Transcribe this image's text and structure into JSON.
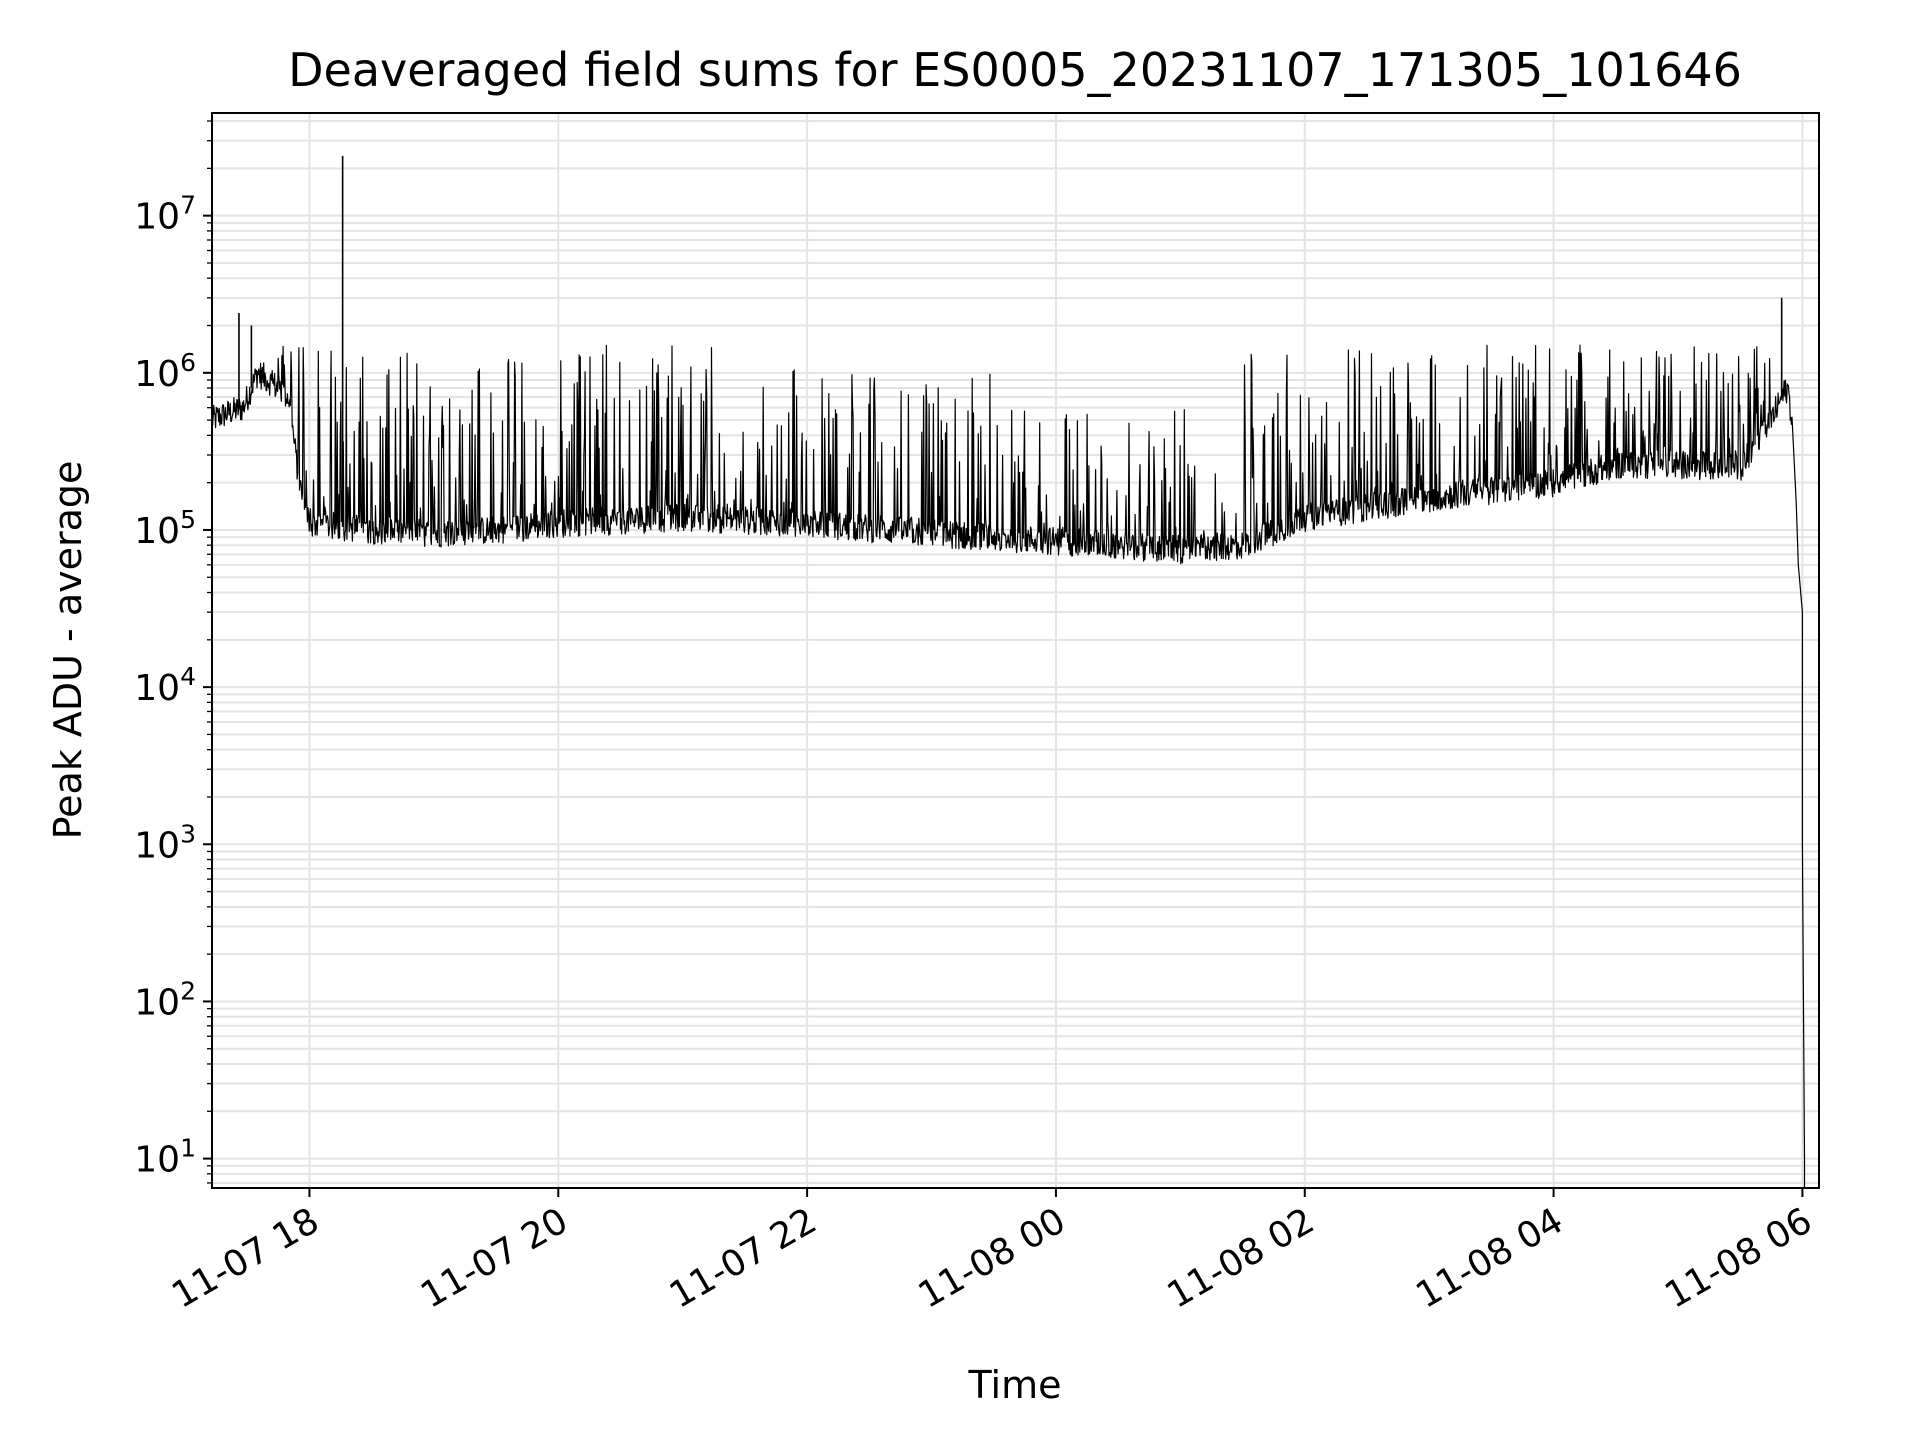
{
  "chart_data": {
    "type": "line",
    "title": "Deaveraged field sums for ES0005_20231107_171305_101646",
    "xlabel": "Time",
    "ylabel": "Peak ADU - average",
    "yscale": "log",
    "ylim": [
      6.5,
      45000000
    ],
    "xlim": [
      "2023-11-07 17:13",
      "2023-11-08 06:08"
    ],
    "grid": true,
    "line_color": "#000000",
    "x_ticks": [
      {
        "time": "2023-11-07 18:00",
        "label": "11-07 18"
      },
      {
        "time": "2023-11-07 20:00",
        "label": "11-07 20"
      },
      {
        "time": "2023-11-07 22:00",
        "label": "11-07 22"
      },
      {
        "time": "2023-11-08 00:00",
        "label": "11-08 00"
      },
      {
        "time": "2023-11-08 02:00",
        "label": "11-08 02"
      },
      {
        "time": "2023-11-08 04:00",
        "label": "11-08 04"
      },
      {
        "time": "2023-11-08 06:00",
        "label": "11-08 06"
      }
    ],
    "y_ticks": [
      {
        "value": 10,
        "base": "10",
        "exp": "1"
      },
      {
        "value": 100,
        "base": "10",
        "exp": "2"
      },
      {
        "value": 1000,
        "base": "10",
        "exp": "3"
      },
      {
        "value": 10000,
        "base": "10",
        "exp": "4"
      },
      {
        "value": 100000,
        "base": "10",
        "exp": "5"
      },
      {
        "value": 1000000,
        "base": "10",
        "exp": "6"
      },
      {
        "value": 10000000,
        "base": "10",
        "exp": "7"
      }
    ],
    "series": [
      {
        "baseline": {
          "x": [
            "2023-11-07 17:13",
            "2023-11-07 17:20",
            "2023-11-07 17:28",
            "2023-11-07 17:35",
            "2023-11-07 17:40",
            "2023-11-07 17:50",
            "2023-11-07 17:55",
            "2023-11-07 18:00",
            "2023-11-07 18:30",
            "2023-11-07 19:00",
            "2023-11-07 19:30",
            "2023-11-07 20:00",
            "2023-11-07 21:00",
            "2023-11-07 22:00",
            "2023-11-07 23:00",
            "2023-11-08 00:00",
            "2023-11-08 00:30",
            "2023-11-08 01:00",
            "2023-11-08 01:30",
            "2023-11-08 02:00",
            "2023-11-08 03:00",
            "2023-11-08 04:00",
            "2023-11-08 04:30",
            "2023-11-08 05:00",
            "2023-11-08 05:30",
            "2023-11-08 05:45",
            "2023-11-08 05:50",
            "2023-11-08 05:53",
            "2023-11-08 05:55",
            "2023-11-08 05:57",
            "2023-11-08 05:58",
            "2023-11-08 06:00",
            "2023-11-08 06:00",
            "2023-11-08 06:01",
            "2023-11-08 06:01"
          ],
          "y": [
            500000,
            550000,
            600000,
            1000000,
            900000,
            700000,
            200000,
            110000,
            100000,
            95000,
            100000,
            110000,
            120000,
            110000,
            95000,
            85000,
            80000,
            75000,
            80000,
            120000,
            160000,
            200000,
            260000,
            260000,
            250000,
            500000,
            700000,
            800000,
            500000,
            150000,
            60000,
            30000,
            1000,
            10,
            6.5
          ]
        },
        "peaks": {
          "x": [
            "2023-11-07 17:26",
            "2023-11-07 17:32",
            "2023-11-07 18:16",
            "2023-11-08 05:50"
          ],
          "y": [
            2400000,
            2000000,
            24000000,
            3000000
          ]
        },
        "spike_band": [
          {
            "from": "2023-11-07 17:35",
            "to": "2023-11-07 18:00",
            "max": 1800000
          },
          {
            "from": "2023-11-07 18:00",
            "to": "2023-11-07 20:00",
            "max": 1400000
          },
          {
            "from": "2023-11-07 20:00",
            "to": "2023-11-07 22:00",
            "max": 1500000
          },
          {
            "from": "2023-11-07 22:00",
            "to": "2023-11-07 23:30",
            "max": 1000000
          },
          {
            "from": "2023-11-07 23:30",
            "to": "2023-11-08 01:30",
            "max": 600000
          },
          {
            "from": "2023-11-08 01:30",
            "to": "2023-11-08 03:00",
            "max": 1500000
          },
          {
            "from": "2023-11-08 03:00",
            "to": "2023-11-08 05:45",
            "max": 1500000
          }
        ]
      }
    ]
  }
}
